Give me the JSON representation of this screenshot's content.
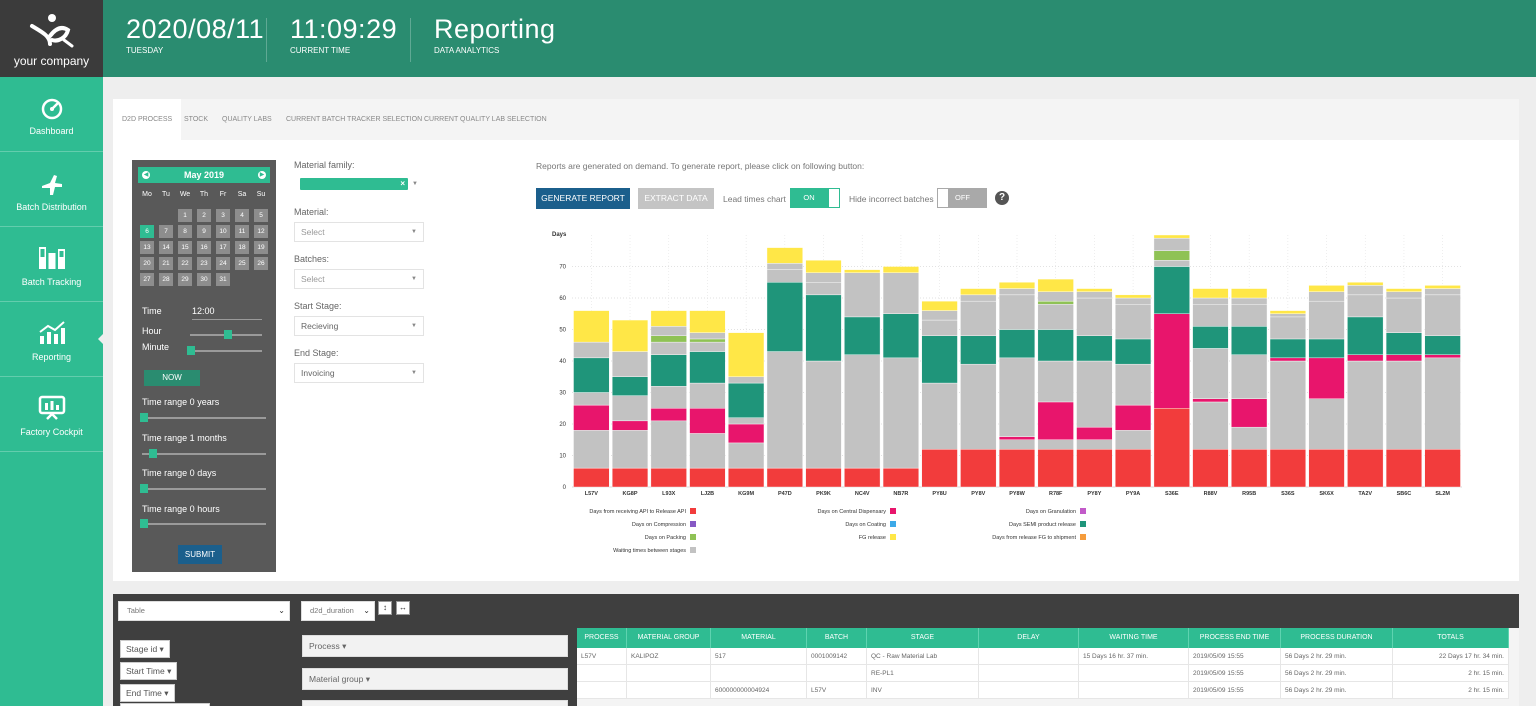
{
  "header": {
    "logo_text": "your company",
    "date": "2020/08/11",
    "day": "TUESDAY",
    "time": "11:09:29",
    "time_label": "CURRENT TIME",
    "title": "Reporting",
    "subtitle": "DATA ANALYTICS"
  },
  "sidebar": {
    "items": [
      {
        "label": "Dashboard",
        "icon": "gauge-icon"
      },
      {
        "label": "Batch Distribution",
        "icon": "plane-icon"
      },
      {
        "label": "Batch Tracking",
        "icon": "bars-icon"
      },
      {
        "label": "Reporting",
        "icon": "trend-chart-icon"
      },
      {
        "label": "Factory Cockpit",
        "icon": "monitor-icon"
      }
    ]
  },
  "tabs": [
    "D2D PROCESS",
    "STOCK",
    "QUALITY LABS",
    "CURRENT BATCH TRACKER SELECTION",
    "CURRENT QUALITY LAB SELECTION"
  ],
  "calendar": {
    "month": "May 2019",
    "dow": [
      "Mo",
      "Tu",
      "We",
      "Th",
      "Fr",
      "Sa",
      "Su"
    ],
    "selected_day": "6",
    "time_label": "Time",
    "time_value": "12:00",
    "hour_label": "Hour",
    "minute_label": "Minute",
    "now_label": "NOW",
    "ranges": [
      "Time range 0 years",
      "Time range 1 months",
      "Time range 0 days",
      "Time range 0 hours"
    ],
    "submit_label": "SUBMIT"
  },
  "filters": {
    "material_family_label": "Material family:",
    "material_label": "Material:",
    "material_value": "Select",
    "batches_label": "Batches:",
    "batches_value": "Select",
    "start_stage_label": "Start Stage:",
    "start_stage_value": "Recieving",
    "end_stage_label": "End Stage:",
    "end_stage_value": "Invoicing"
  },
  "report": {
    "note": "Reports are generated on demand. To generate report, please click on following button:",
    "generate_label": "GENERATE REPORT",
    "extract_label": "EXTRACT DATA",
    "lead_times_label": "Lead times chart",
    "lead_toggle": "ON",
    "hide_label": "Hide incorrect batches",
    "hide_toggle": "OFF",
    "help": "?"
  },
  "chart_data": {
    "type": "bar",
    "ylabel": "Days",
    "ylim": [
      0,
      80
    ],
    "yticks": [
      0,
      10,
      20,
      30,
      40,
      50,
      60,
      70
    ],
    "grid": true,
    "legend_placement": "bottom",
    "categories": [
      "L57V",
      "KG8P",
      "L93X",
      "LJ2B",
      "KG9M",
      "P47D",
      "PK9K",
      "NC4V",
      "NB7R",
      "PY8U",
      "PY8V",
      "PY8W",
      "R78F",
      "PY8Y",
      "PY9A",
      "S36E",
      "R88V",
      "R95B",
      "S36S",
      "SK6X",
      "TA2V",
      "SB6C",
      "SL2M"
    ],
    "series": [
      {
        "name": "Days from receiving API to Release API",
        "color": "#f23c3c",
        "values": [
          6,
          6,
          6,
          6,
          6,
          6,
          6,
          6,
          6,
          12,
          12,
          12,
          12,
          12,
          12,
          25,
          12,
          12,
          12,
          12,
          12,
          12,
          12
        ]
      },
      {
        "name": "Waiting times between stages",
        "color": "#c2c2c2",
        "values": [
          12,
          12,
          15,
          11,
          8,
          37,
          34,
          36,
          35,
          21,
          27,
          3,
          3,
          3,
          6,
          0,
          15,
          7,
          28,
          16,
          28,
          28,
          29
        ]
      },
      {
        "name": "Days on Central Dispensary",
        "color": "#e8156c",
        "values": [
          8,
          3,
          4,
          8,
          6,
          0,
          0,
          0,
          0,
          0,
          0,
          1,
          12,
          4,
          8,
          30,
          1,
          9,
          1,
          13,
          2,
          2,
          1
        ]
      },
      {
        "name": "Waiting times between stages",
        "color": "#c2c2c2",
        "values": [
          4,
          8,
          7,
          8,
          2,
          0,
          0,
          0,
          0,
          0,
          0,
          25,
          13,
          21,
          13,
          0,
          16,
          14,
          0,
          0,
          0,
          0,
          0
        ]
      },
      {
        "name": "Days SEMI product release",
        "color": "#1f957a",
        "values": [
          11,
          6,
          10,
          10,
          11,
          22,
          21,
          12,
          14,
          15,
          9,
          9,
          10,
          8,
          8,
          15,
          7,
          9,
          6,
          6,
          12,
          7,
          6
        ]
      },
      {
        "name": "Waiting times between stages",
        "color": "#c2c2c2",
        "values": [
          5,
          8,
          4,
          3,
          0,
          4,
          4,
          14,
          13,
          5,
          11,
          11,
          8,
          12,
          11,
          2,
          7,
          7,
          7,
          12,
          7,
          11,
          13
        ]
      },
      {
        "name": "Days on Packing",
        "color": "#8fc255",
        "values": [
          0,
          0,
          2,
          1,
          0,
          0,
          0,
          0,
          0,
          0,
          0,
          0,
          1,
          0,
          0,
          3,
          0,
          0,
          0,
          0,
          0,
          0,
          0
        ]
      },
      {
        "name": "Waiting times between stages",
        "color": "#c2c2c2",
        "values": [
          0,
          0,
          3,
          2,
          2,
          2,
          3,
          0,
          0,
          3,
          2,
          2,
          3,
          2,
          2,
          4,
          2,
          2,
          1,
          3,
          3,
          2,
          2
        ]
      },
      {
        "name": "FG release",
        "color": "#ffe747",
        "values": [
          10,
          10,
          5,
          7,
          14,
          5,
          4,
          1,
          2,
          3,
          2,
          2,
          4,
          1,
          1,
          1,
          3,
          3,
          1,
          2,
          1,
          1,
          1
        ]
      }
    ],
    "legend": [
      {
        "name": "Days from receiving API to Release API",
        "color": "#f23c3c"
      },
      {
        "name": "Days on Compression",
        "color": "#8659c4"
      },
      {
        "name": "Days on Packing",
        "color": "#8fc255"
      },
      {
        "name": "Waiting times between stages",
        "color": "#c2c2c2"
      },
      {
        "name": "Days on Central Dispensary",
        "color": "#e8156c"
      },
      {
        "name": "Days on Coating",
        "color": "#3ca9e8"
      },
      {
        "name": "FG release",
        "color": "#ffe747"
      },
      {
        "name": "Days on Granulation",
        "color": "#c25ac9"
      },
      {
        "name": "Days SEMI product release",
        "color": "#1f957a"
      },
      {
        "name": "Days from release FG to shipment",
        "color": "#f59c3c"
      }
    ]
  },
  "bottom": {
    "view_select": "Table",
    "metric_select": "d2d_duration",
    "pills": [
      "Stage id ▾",
      "Start Time ▾",
      "End Time ▾"
    ],
    "groups": [
      "Process ▾",
      "Material group ▾"
    ],
    "columns": [
      "PROCESS",
      "MATERIAL GROUP",
      "MATERIAL",
      "BATCH",
      "STAGE",
      "DELAY",
      "WAITING TIME",
      "PROCESS END TIME",
      "PROCESS DURATION",
      "TOTALS"
    ],
    "rows": [
      [
        "L57V",
        "KALIPOZ",
        "517",
        "0001009142",
        "QC - Raw Material Lab",
        "",
        "15 Days 16 hr. 37 min.",
        "2019/05/09 15:55",
        "56 Days 2 hr. 29 min.",
        "22 Days 17 hr. 34 min."
      ],
      [
        "",
        "",
        "",
        "",
        "RE-PL1",
        "",
        "",
        "2019/05/09 15:55",
        "56 Days 2 hr. 29 min.",
        "2 hr. 15 min."
      ],
      [
        "",
        "",
        "600000000004924",
        "L57V",
        "INV",
        "",
        "",
        "2019/05/09 15:55",
        "56 Days 2 hr. 29 min.",
        "2 hr. 15 min."
      ]
    ]
  }
}
